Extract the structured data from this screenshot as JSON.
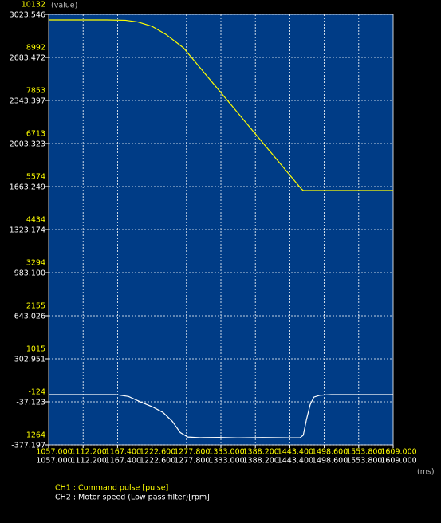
{
  "chart_data": {
    "type": "line",
    "y_axis_label": "(value)",
    "x_axis_label": "(ms)",
    "xlim": [
      1057,
      1609
    ],
    "xticks": [
      {
        "value": 1057,
        "label": "1057.000"
      },
      {
        "value": 1112.2,
        "label": "1112.200"
      },
      {
        "value": 1167.4,
        "label": "1167.400"
      },
      {
        "value": 1222.6,
        "label": "1222.600"
      },
      {
        "value": 1277.8,
        "label": "1277.800"
      },
      {
        "value": 1333,
        "label": "1333.000"
      },
      {
        "value": 1388.2,
        "label": "1388.200"
      },
      {
        "value": 1443.4,
        "label": "1443.400"
      },
      {
        "value": 1498.6,
        "label": "1498.600"
      },
      {
        "value": 1553.8,
        "label": "1553.800"
      },
      {
        "value": 1609,
        "label": "1609.000"
      }
    ],
    "x2ticks": [
      {
        "value": 1057,
        "label": "1057.000"
      },
      {
        "value": 1112.2,
        "label": "1112.200"
      },
      {
        "value": 1167.4,
        "label": "1167.400"
      },
      {
        "value": 1222.6,
        "label": "1222.600"
      },
      {
        "value": 1277.8,
        "label": "1277.800"
      },
      {
        "value": 1333,
        "label": "1333.000"
      },
      {
        "value": 1388.2,
        "label": "1388.200"
      },
      {
        "value": 1443.4,
        "label": "1443.400"
      },
      {
        "value": 1498.6,
        "label": "1498.600"
      },
      {
        "value": 1553.8,
        "label": "1553.800"
      },
      {
        "value": 1609,
        "label": "1609.000"
      }
    ],
    "ylim": [
      -1264,
      10132
    ],
    "yticks": [
      10132,
      8992,
      7853,
      6713,
      5574,
      4434,
      3294,
      2155,
      1015,
      -124,
      -1264
    ],
    "y2lim": [
      -377.197,
      3023.546
    ],
    "y2ticks": [
      3023.546,
      2683.472,
      2343.397,
      2003.323,
      1663.249,
      1323.174,
      {
        "value": 983.1,
        "label": "983.100"
      },
      643.026,
      302.951,
      -37.123,
      -377.197
    ],
    "grid": true,
    "series": [
      {
        "name": "CH1 : Command pulse [pulse]",
        "color": "#ffff00",
        "x": [
          1057,
          1150,
          1180,
          1200,
          1222.6,
          1245,
          1273,
          1300,
          1350,
          1400,
          1450,
          1462,
          1465,
          1500,
          1609
        ],
        "values": [
          9984,
          9984,
          9975,
          9930,
          9815,
          9600,
          9246,
          8712,
          7724,
          6735,
          5747,
          5510,
          5468,
          5468,
          5468
        ]
      },
      {
        "name": "CH2 : Motor speed (Low pass filter)[rpm]",
        "color": "#ffffff",
        "axis": "y2",
        "x": [
          1057,
          1165,
          1185,
          1205,
          1222.6,
          1240,
          1255,
          1268,
          1280,
          1300,
          1330,
          1360,
          1400,
          1440,
          1460,
          1465,
          1470,
          1476,
          1482,
          1492,
          1510,
          1609
        ],
        "values": [
          20,
          20,
          5,
          -40,
          -75,
          -120,
          -190,
          -280,
          -315,
          -320,
          -318,
          -322,
          -319,
          -321,
          -320,
          -300,
          -180,
          -60,
          0,
          15,
          20,
          20
        ]
      }
    ]
  }
}
